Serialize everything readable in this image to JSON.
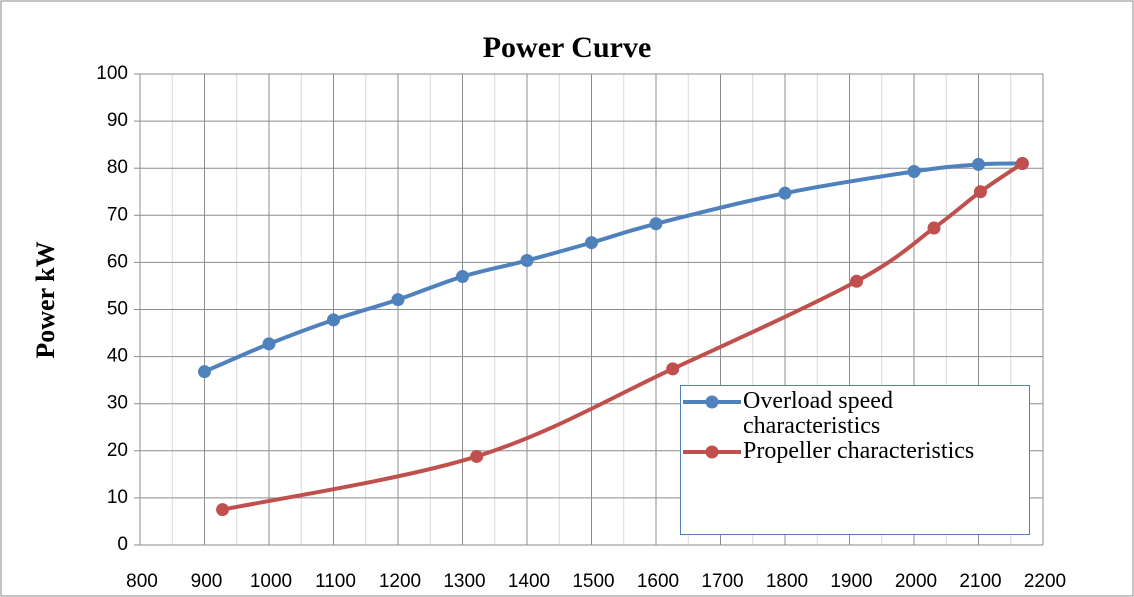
{
  "chart_data": {
    "type": "line",
    "title": "Power Curve",
    "y_label": "Power  kW",
    "xlim": [
      800,
      2200
    ],
    "xticks": [
      800,
      900,
      1000,
      1100,
      1200,
      1300,
      1400,
      1500,
      1600,
      1700,
      1800,
      1900,
      2000,
      2100,
      2200
    ],
    "xminorticks": [
      850,
      950,
      1050,
      1150,
      1250,
      1350,
      1450,
      1550,
      1650,
      1750,
      1850,
      1950,
      2050,
      2150
    ],
    "ylim": [
      0,
      100
    ],
    "yticks": [
      0,
      10,
      20,
      30,
      40,
      50,
      60,
      70,
      80,
      90,
      100
    ],
    "grid": true,
    "series": [
      {
        "name": "Overload speed characteristics",
        "color": "#4f81bd",
        "x": [
          900,
          1000,
          1100,
          1200,
          1300,
          1400,
          1500,
          1600,
          1800,
          2000,
          2100,
          2168
        ],
        "values": [
          36.8,
          42.7,
          47.8,
          52.1,
          57,
          60.4,
          64.2,
          68.2,
          74.7,
          79.3,
          80.8,
          81
        ]
      },
      {
        "name": "Propeller characteristics",
        "color": "#c0504d",
        "x": [
          928,
          1322,
          1626,
          1911,
          2031,
          2103,
          2168
        ],
        "values": [
          7.5,
          18.8,
          37.4,
          56,
          67.3,
          75,
          81
        ]
      }
    ]
  }
}
